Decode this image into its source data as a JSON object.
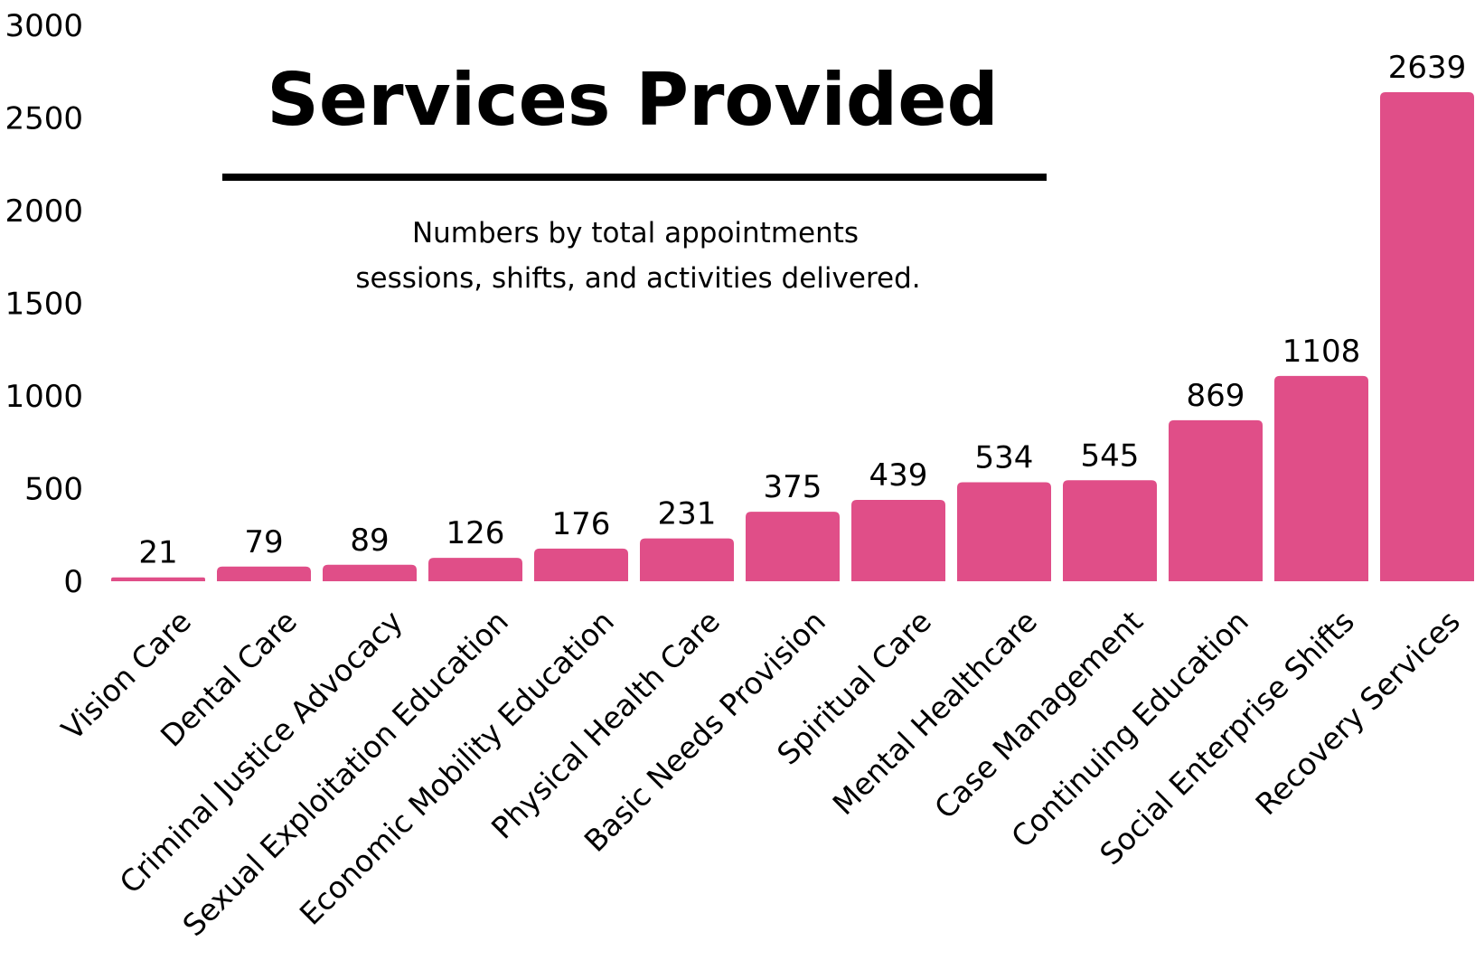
{
  "chart_data": {
    "type": "bar",
    "title": "Services Provided",
    "subtitle_lines": [
      "Numbers by total appointments",
      "sessions, shifts, and activities delivered."
    ],
    "categories": [
      "Vision Care",
      "Dental Care",
      "Criminal Justice Advocacy",
      "Sexual Exploitation Education",
      "Economic Mobility Education",
      "Physical Health Care",
      "Basic Needs Provision",
      "Spiritual Care",
      "Mental Healthcare",
      "Case Management",
      "Continuing Education",
      "Social Enterprise Shifts",
      "Recovery Services"
    ],
    "values": [
      21,
      79,
      89,
      126,
      176,
      231,
      375,
      439,
      534,
      545,
      869,
      1108,
      2639
    ],
    "ylim": [
      0,
      3000
    ],
    "yticks": [
      0,
      500,
      1000,
      1500,
      2000,
      2500,
      3000
    ],
    "xlabel": "",
    "ylabel": "",
    "grid": false,
    "legend": "none",
    "bar_color": "#e04e88"
  }
}
